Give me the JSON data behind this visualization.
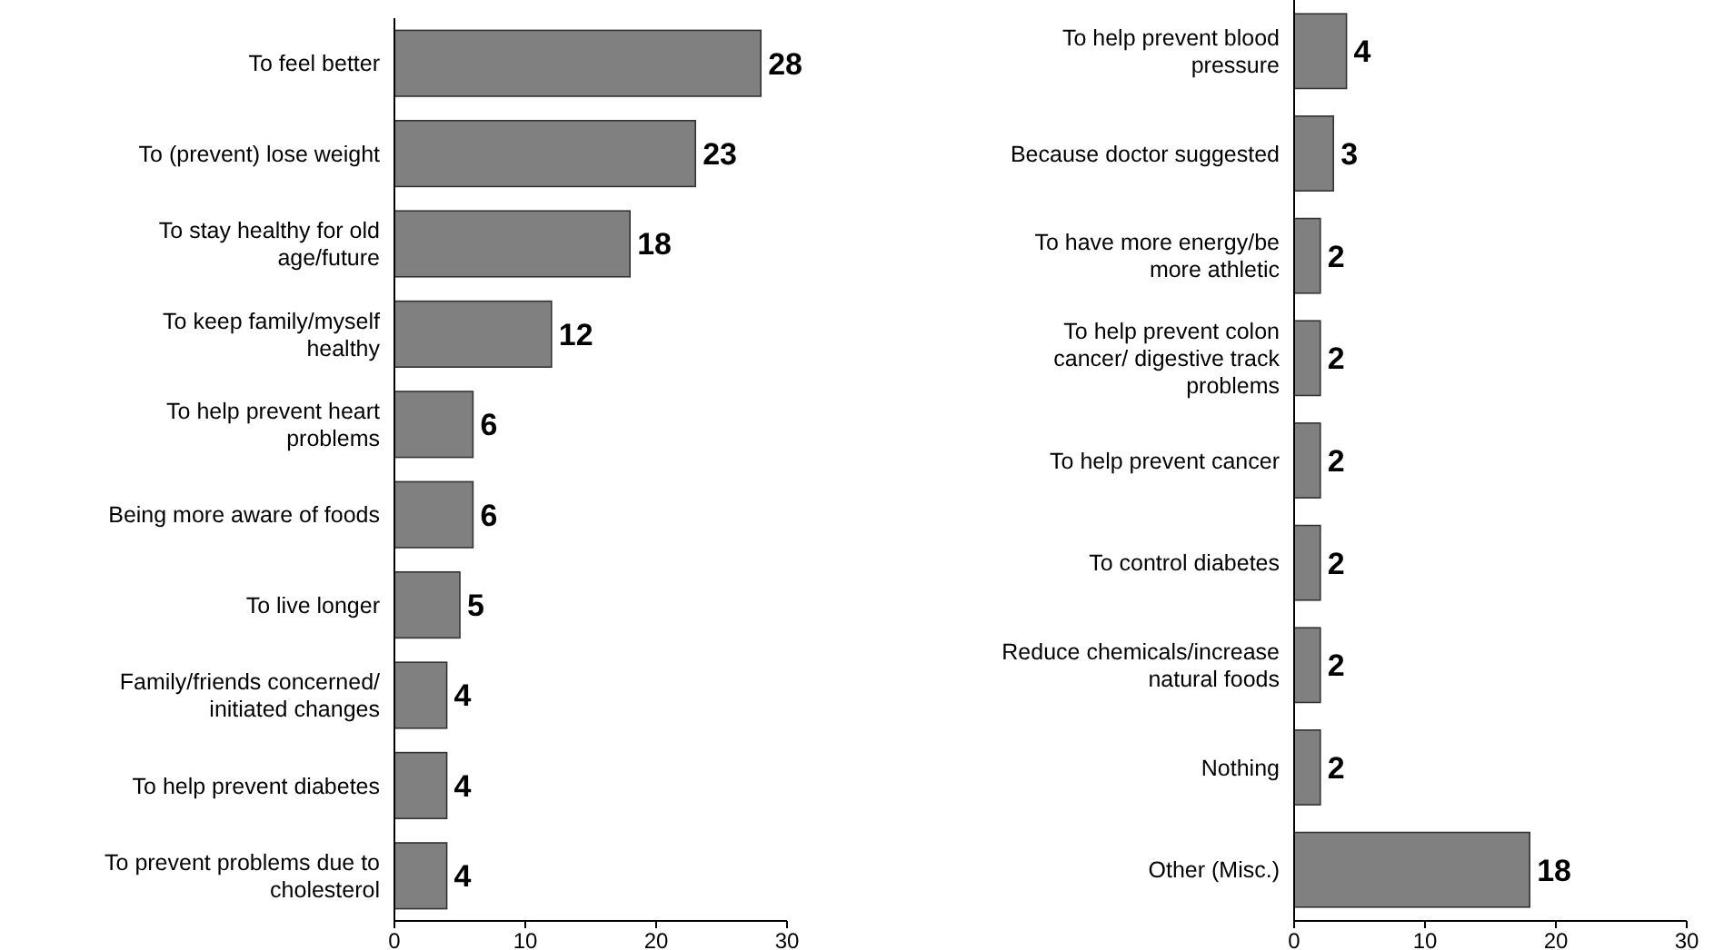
{
  "chart_data": [
    {
      "type": "bar",
      "orientation": "horizontal",
      "categories": [
        "To feel better",
        "To (prevent) lose weight",
        "To stay healthy for old age/future",
        "To keep family/myself healthy",
        "To help prevent heart problems",
        "Being more aware of foods",
        "To live longer",
        "Family/friends concerned/ initiated changes",
        "To help prevent diabetes",
        "To prevent problems due to cholesterol"
      ],
      "values": [
        28,
        23,
        18,
        12,
        6,
        6,
        5,
        4,
        4,
        4
      ],
      "color": "#808080",
      "xlim": [
        0,
        30
      ],
      "xticks": [
        0,
        10,
        20,
        30
      ],
      "data_labels": true
    },
    {
      "type": "bar",
      "orientation": "horizontal",
      "categories": [
        "To help prevent blood pressure",
        "Because doctor suggested",
        "To have more energy/be more athletic",
        "To help prevent colon cancer/ digestive track problems",
        "To help prevent cancer",
        "To control diabetes",
        "Reduce chemicals/increase natural foods",
        "Nothing",
        "Other (Misc.)"
      ],
      "values": [
        4,
        3,
        2,
        2,
        2,
        2,
        2,
        2,
        18
      ],
      "color": "#808080",
      "xlim": [
        0,
        30
      ],
      "xticks": [
        0,
        10,
        20,
        30
      ],
      "data_labels": true
    }
  ]
}
